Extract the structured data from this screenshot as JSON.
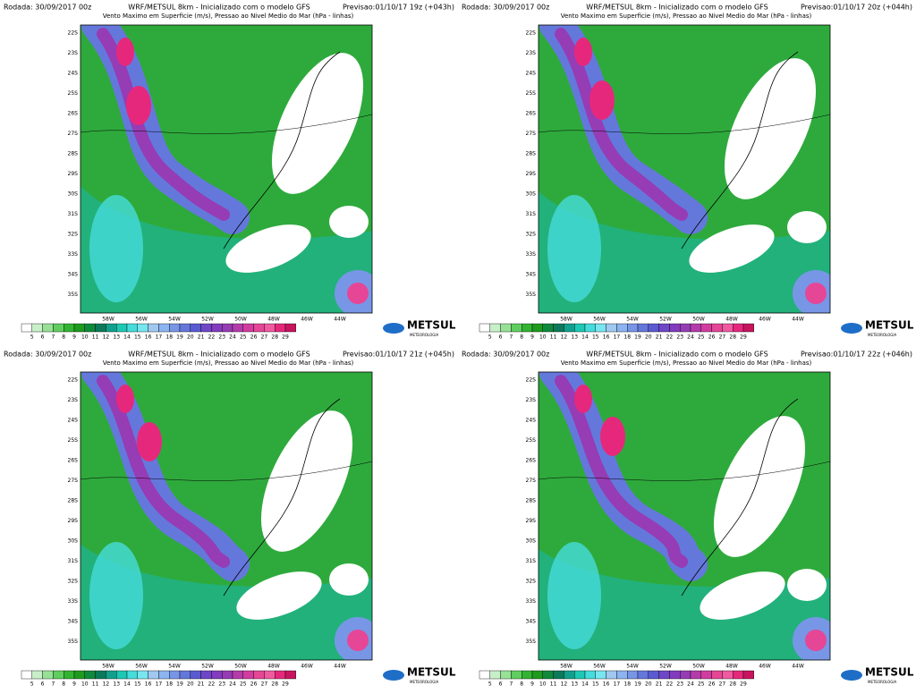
{
  "panels": [
    {
      "run": "Rodada: 30/09/2017 00z",
      "title": "WRF/METSUL 8km - Inicializado com o modelo GFS",
      "forecast": "Previsao:01/10/17 19z (+043h)",
      "subtitle": "Vento Maximo em Superficie (m/s), Pressao ao Nivel Medio do Mar (hPa - linhas)"
    },
    {
      "run": "Rodada: 30/09/2017 00z",
      "title": "WRF/METSUL 8km - Inicializado com o modelo GFS",
      "forecast": "Previsao:01/10/17 20z (+044h)",
      "subtitle": "Vento Maximo em Superficie (m/s), Pressao ao Nivel Medio do Mar (hPa - linhas)"
    },
    {
      "run": "Rodada: 30/09/2017 00z",
      "title": "WRF/METSUL 8km - Inicializado com o modelo GFS",
      "forecast": "Previsao:01/10/17 21z (+045h)",
      "subtitle": "Vento Maximo em Superficie (m/s), Pressao ao Nivel Medio do Mar (hPa - linhas)"
    },
    {
      "run": "Rodada: 30/09/2017 00z",
      "title": "WRF/METSUL 8km - Inicializado com o modelo GFS",
      "forecast": "Previsao:01/10/17 22z (+046h)",
      "subtitle": "Vento Maximo em Superficie (m/s), Pressao ao Nivel Medio do Mar (hPa - linhas)"
    }
  ],
  "lat_labels": [
    "22S",
    "23S",
    "24S",
    "25S",
    "26S",
    "27S",
    "28S",
    "29S",
    "30S",
    "31S",
    "32S",
    "33S",
    "34S",
    "35S"
  ],
  "lon_labels": [
    "58W",
    "56W",
    "54W",
    "52W",
    "50W",
    "48W",
    "46W",
    "44W"
  ],
  "colorbar_labels": [
    "5",
    "6",
    "7",
    "8",
    "9",
    "10",
    "11",
    "12",
    "13",
    "14",
    "15",
    "16",
    "17",
    "18",
    "19",
    "20",
    "21",
    "22",
    "23",
    "24",
    "25",
    "26",
    "27",
    "28",
    "29"
  ],
  "logo": {
    "name": "METSUL",
    "tagline": "METEOROLOGIA"
  }
}
